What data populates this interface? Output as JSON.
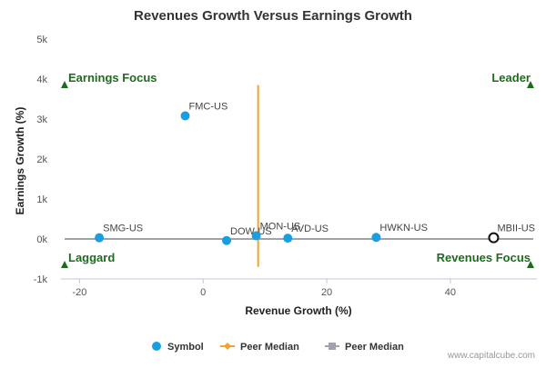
{
  "chart_data": {
    "type": "scatter",
    "title": "Revenues Growth Versus Earnings Growth",
    "xlabel": "Revenue Growth (%)",
    "ylabel": "Earnings Growth (%)",
    "xlim": [
      -23,
      54
    ],
    "ylim": [
      -1000,
      5000
    ],
    "x_ticks": [
      {
        "value": -20,
        "label": "-20"
      },
      {
        "value": 0,
        "label": "0"
      },
      {
        "value": 20,
        "label": "20"
      },
      {
        "value": 40,
        "label": "40"
      }
    ],
    "y_ticks": [
      {
        "value": -1000,
        "label": "-1k"
      },
      {
        "value": 0,
        "label": "0k"
      },
      {
        "value": 1000,
        "label": "1k"
      },
      {
        "value": 2000,
        "label": "2k"
      },
      {
        "value": 3000,
        "label": "3k"
      },
      {
        "value": 4000,
        "label": "4k"
      },
      {
        "value": 5000,
        "label": "5k"
      }
    ],
    "grid": false,
    "points": [
      {
        "label": "FMC-US",
        "x": -2.9,
        "y": 3080,
        "highlight": false
      },
      {
        "label": "SMG-US",
        "x": -16.8,
        "y": 30,
        "highlight": false
      },
      {
        "label": "DOW-US",
        "x": 3.8,
        "y": -40,
        "highlight": false
      },
      {
        "label": "MON-US",
        "x": 8.6,
        "y": 80,
        "highlight": false
      },
      {
        "label": "AVD-US",
        "x": 13.7,
        "y": 20,
        "highlight": false
      },
      {
        "label": "HWKN-US",
        "x": 28.0,
        "y": 40,
        "highlight": false
      },
      {
        "label": "MBII-US",
        "x": 47.0,
        "y": 30,
        "highlight": true
      }
    ],
    "peer_median_x": 8.9,
    "peer_median_x_range": [
      -700,
      3850
    ],
    "peer_median_y": 0,
    "quadrants": {
      "top_left": "Earnings Focus",
      "top_right": "Leader",
      "bottom_left": "Laggard",
      "bottom_right": "Revenues Focus"
    },
    "legend": {
      "position": "bottom",
      "items": [
        {
          "name": "Symbol",
          "marker": "circle",
          "color": "#1a9ee2"
        },
        {
          "name": "Peer Median",
          "marker": "diamond-line",
          "color": "#f0a430"
        },
        {
          "name": "Peer Median",
          "marker": "square-line",
          "color": "#9ea3ac"
        }
      ]
    }
  },
  "colors": {
    "point": "#1a9ee2",
    "highlight_ring": "#111111",
    "median_x_line": "#f0a430",
    "median_y_line": "#9ea3ac",
    "quadrant_text": "#1e6b1e",
    "axis_text": "#555555",
    "title": "#333333"
  },
  "footer": {
    "credit": "www.capitalcube.com"
  }
}
